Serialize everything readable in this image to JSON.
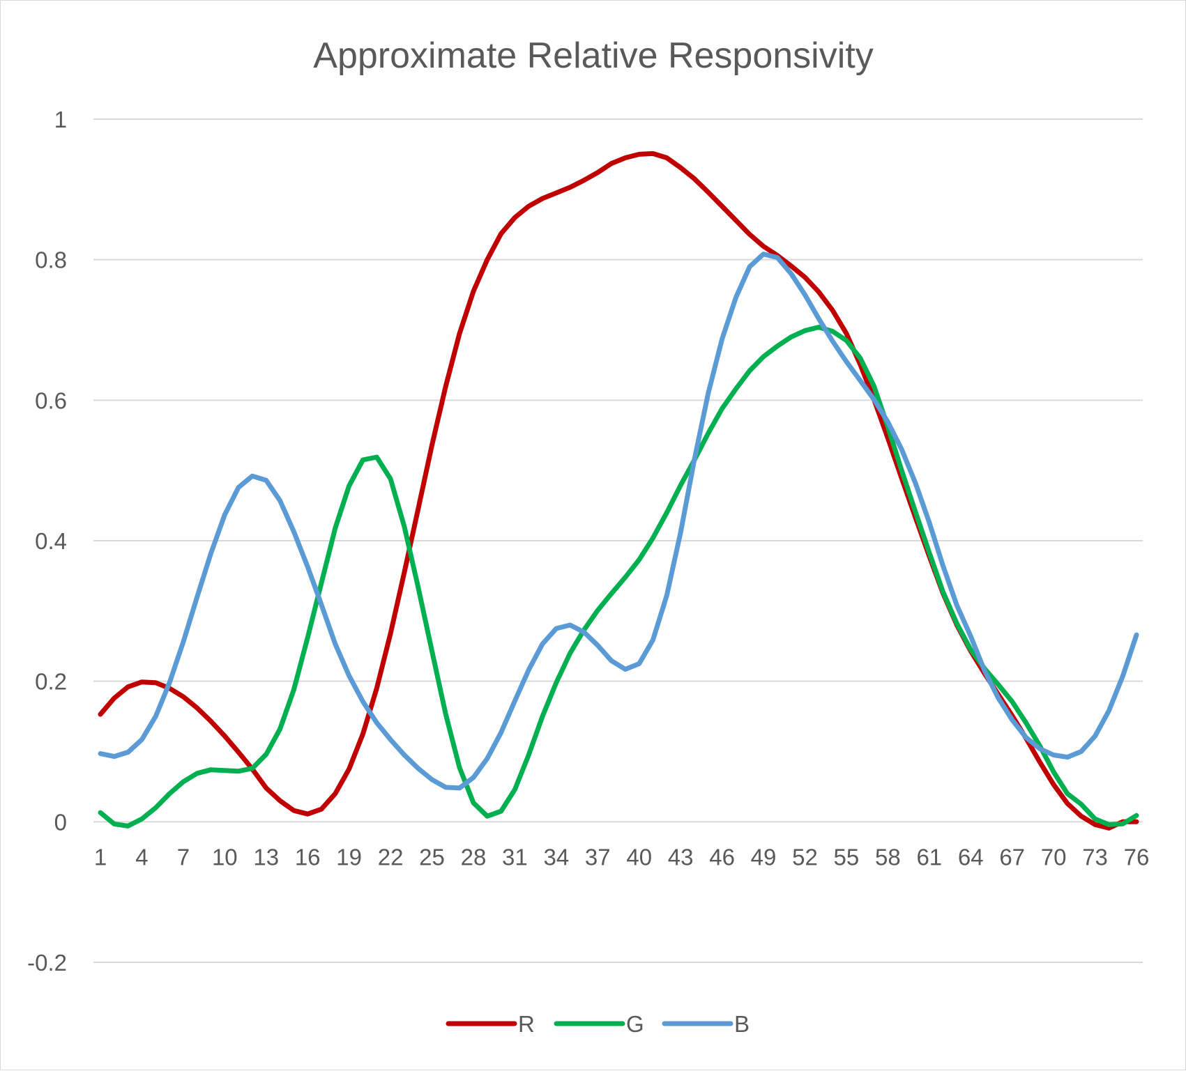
{
  "chart_data": {
    "type": "line",
    "title": "Approximate Relative Responsivity",
    "xlabel": "",
    "ylabel": "",
    "ylim": [
      -0.2,
      1
    ],
    "yticks": [
      "-0.2",
      "0",
      "0.2",
      "0.4",
      "0.6",
      "0.8",
      "1"
    ],
    "ytick_values": [
      -0.2,
      0,
      0.2,
      0.4,
      0.6,
      0.8,
      1
    ],
    "x": [
      1,
      2,
      3,
      4,
      5,
      6,
      7,
      8,
      9,
      10,
      11,
      12,
      13,
      14,
      15,
      16,
      17,
      18,
      19,
      20,
      21,
      22,
      23,
      24,
      25,
      26,
      27,
      28,
      29,
      30,
      31,
      32,
      33,
      34,
      35,
      36,
      37,
      38,
      39,
      40,
      41,
      42,
      43,
      44,
      45,
      46,
      47,
      48,
      49,
      50,
      51,
      52,
      53,
      54,
      55,
      56,
      57,
      58,
      59,
      60,
      61,
      62,
      63,
      64,
      65,
      66,
      67,
      68,
      69,
      70,
      71,
      72,
      73,
      74,
      75,
      76
    ],
    "xticks": [
      "1",
      "4",
      "7",
      "10",
      "13",
      "16",
      "19",
      "22",
      "25",
      "28",
      "31",
      "34",
      "37",
      "40",
      "43",
      "46",
      "49",
      "52",
      "55",
      "58",
      "61",
      "64",
      "67",
      "70",
      "73",
      "76"
    ],
    "grid": true,
    "legend_position": "bottom",
    "series": [
      {
        "name": "R",
        "color": "#c00000",
        "values": [
          0.153,
          0.176,
          0.192,
          0.199,
          0.198,
          0.19,
          0.178,
          0.162,
          0.143,
          0.122,
          0.099,
          0.075,
          0.048,
          0.03,
          0.016,
          0.011,
          0.018,
          0.04,
          0.075,
          0.125,
          0.19,
          0.268,
          0.355,
          0.445,
          0.536,
          0.62,
          0.695,
          0.755,
          0.8,
          0.837,
          0.86,
          0.876,
          0.887,
          0.895,
          0.903,
          0.913,
          0.924,
          0.937,
          0.945,
          0.95,
          0.951,
          0.945,
          0.931,
          0.915,
          0.896,
          0.876,
          0.856,
          0.836,
          0.819,
          0.806,
          0.791,
          0.775,
          0.754,
          0.728,
          0.695,
          0.651,
          0.601,
          0.546,
          0.489,
          0.433,
          0.378,
          0.325,
          0.28,
          0.243,
          0.211,
          0.181,
          0.151,
          0.119,
          0.085,
          0.053,
          0.026,
          0.008,
          -0.004,
          -0.009,
          0.0,
          0.0
        ]
      },
      {
        "name": "G",
        "color": "#00b050",
        "values": [
          0.013,
          -0.003,
          -0.006,
          0.004,
          0.02,
          0.04,
          0.057,
          0.069,
          0.074,
          0.073,
          0.072,
          0.076,
          0.096,
          0.132,
          0.188,
          0.262,
          0.34,
          0.418,
          0.478,
          0.515,
          0.519,
          0.488,
          0.42,
          0.334,
          0.243,
          0.153,
          0.077,
          0.027,
          0.008,
          0.015,
          0.046,
          0.095,
          0.15,
          0.198,
          0.24,
          0.273,
          0.301,
          0.325,
          0.348,
          0.373,
          0.404,
          0.44,
          0.479,
          0.515,
          0.553,
          0.588,
          0.616,
          0.642,
          0.662,
          0.677,
          0.69,
          0.699,
          0.704,
          0.698,
          0.685,
          0.66,
          0.62,
          0.562,
          0.5,
          0.441,
          0.383,
          0.327,
          0.282,
          0.245,
          0.218,
          0.195,
          0.171,
          0.141,
          0.108,
          0.071,
          0.04,
          0.025,
          0.004,
          -0.004,
          -0.003,
          0.009
        ]
      },
      {
        "name": "B",
        "color": "#5b9bd5",
        "values": [
          0.097,
          0.093,
          0.099,
          0.117,
          0.15,
          0.198,
          0.256,
          0.32,
          0.382,
          0.437,
          0.476,
          0.492,
          0.486,
          0.457,
          0.413,
          0.363,
          0.309,
          0.253,
          0.208,
          0.171,
          0.141,
          0.117,
          0.095,
          0.076,
          0.06,
          0.049,
          0.048,
          0.063,
          0.09,
          0.127,
          0.172,
          0.216,
          0.253,
          0.275,
          0.28,
          0.27,
          0.251,
          0.229,
          0.217,
          0.225,
          0.259,
          0.322,
          0.412,
          0.516,
          0.61,
          0.687,
          0.746,
          0.79,
          0.808,
          0.803,
          0.78,
          0.75,
          0.716,
          0.684,
          0.655,
          0.628,
          0.601,
          0.569,
          0.53,
          0.482,
          0.426,
          0.364,
          0.308,
          0.264,
          0.215,
          0.176,
          0.145,
          0.12,
          0.104,
          0.095,
          0.092,
          0.1,
          0.122,
          0.158,
          0.207,
          0.266
        ]
      }
    ]
  }
}
